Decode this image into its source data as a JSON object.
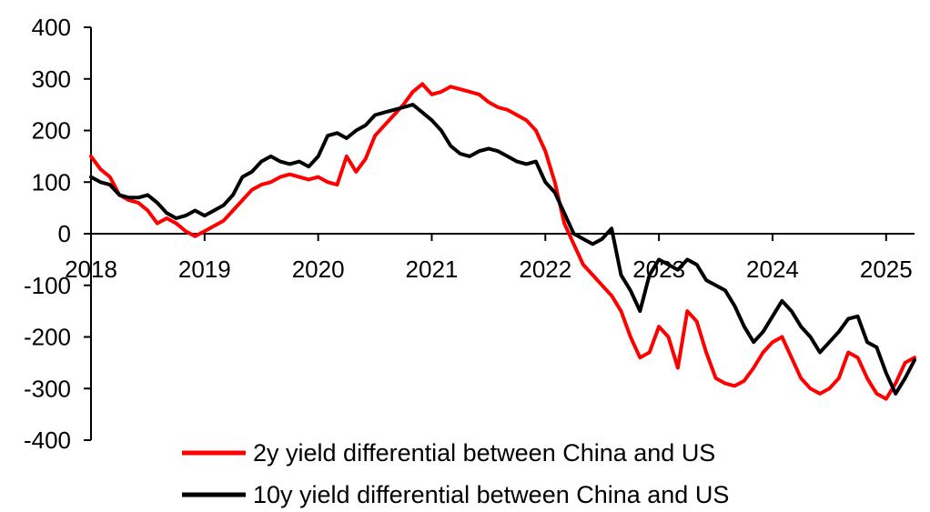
{
  "chart_data": {
    "type": "line",
    "title": "",
    "xlabel": "",
    "ylabel": "",
    "ylim": [
      -400,
      400
    ],
    "xlim": [
      "2018-01",
      "2025-04"
    ],
    "yticks": [
      "400",
      "300",
      "200",
      "100",
      "0",
      "-100",
      "-200",
      "-300",
      "-400"
    ],
    "xticks": [
      "2018",
      "2019",
      "2020",
      "2021",
      "2022",
      "2023",
      "2024",
      "2025"
    ],
    "grid": false,
    "legend": "bottom",
    "series": [
      {
        "name": "2y yield differential between China and US",
        "color": "#ff0000",
        "points": [
          [
            "2018-01",
            150
          ],
          [
            "2018-02",
            125
          ],
          [
            "2018-03",
            110
          ],
          [
            "2018-04",
            75
          ],
          [
            "2018-05",
            65
          ],
          [
            "2018-06",
            60
          ],
          [
            "2018-07",
            45
          ],
          [
            "2018-08",
            20
          ],
          [
            "2018-09",
            30
          ],
          [
            "2018-10",
            20
          ],
          [
            "2018-11",
            5
          ],
          [
            "2018-12",
            -5
          ],
          [
            "2019-01",
            5
          ],
          [
            "2019-02",
            15
          ],
          [
            "2019-03",
            25
          ],
          [
            "2019-04",
            45
          ],
          [
            "2019-05",
            65
          ],
          [
            "2019-06",
            85
          ],
          [
            "2019-07",
            95
          ],
          [
            "2019-08",
            100
          ],
          [
            "2019-09",
            110
          ],
          [
            "2019-10",
            115
          ],
          [
            "2019-11",
            110
          ],
          [
            "2019-12",
            105
          ],
          [
            "2020-01",
            110
          ],
          [
            "2020-02",
            100
          ],
          [
            "2020-03",
            95
          ],
          [
            "2020-04",
            150
          ],
          [
            "2020-05",
            120
          ],
          [
            "2020-06",
            145
          ],
          [
            "2020-07",
            190
          ],
          [
            "2020-08",
            210
          ],
          [
            "2020-09",
            230
          ],
          [
            "2020-10",
            250
          ],
          [
            "2020-11",
            275
          ],
          [
            "2020-12",
            290
          ],
          [
            "2021-01",
            270
          ],
          [
            "2021-02",
            275
          ],
          [
            "2021-03",
            285
          ],
          [
            "2021-04",
            280
          ],
          [
            "2021-05",
            275
          ],
          [
            "2021-06",
            270
          ],
          [
            "2021-07",
            255
          ],
          [
            "2021-08",
            245
          ],
          [
            "2021-09",
            240
          ],
          [
            "2021-10",
            230
          ],
          [
            "2021-11",
            220
          ],
          [
            "2021-12",
            200
          ],
          [
            "2022-01",
            160
          ],
          [
            "2022-02",
            100
          ],
          [
            "2022-03",
            20
          ],
          [
            "2022-04",
            -20
          ],
          [
            "2022-05",
            -60
          ],
          [
            "2022-06",
            -80
          ],
          [
            "2022-07",
            -100
          ],
          [
            "2022-08",
            -120
          ],
          [
            "2022-09",
            -150
          ],
          [
            "2022-10",
            -200
          ],
          [
            "2022-11",
            -240
          ],
          [
            "2022-12",
            -230
          ],
          [
            "2023-01",
            -180
          ],
          [
            "2023-02",
            -200
          ],
          [
            "2023-03",
            -260
          ],
          [
            "2023-04",
            -150
          ],
          [
            "2023-05",
            -170
          ],
          [
            "2023-06",
            -230
          ],
          [
            "2023-07",
            -280
          ],
          [
            "2023-08",
            -290
          ],
          [
            "2023-09",
            -295
          ],
          [
            "2023-10",
            -285
          ],
          [
            "2023-11",
            -260
          ],
          [
            "2023-12",
            -230
          ],
          [
            "2024-01",
            -210
          ],
          [
            "2024-02",
            -200
          ],
          [
            "2024-03",
            -240
          ],
          [
            "2024-04",
            -280
          ],
          [
            "2024-05",
            -300
          ],
          [
            "2024-06",
            -310
          ],
          [
            "2024-07",
            -300
          ],
          [
            "2024-08",
            -280
          ],
          [
            "2024-09",
            -230
          ],
          [
            "2024-10",
            -240
          ],
          [
            "2024-11",
            -280
          ],
          [
            "2024-12",
            -310
          ],
          [
            "2025-01",
            -320
          ],
          [
            "2025-02",
            -290
          ],
          [
            "2025-03",
            -250
          ],
          [
            "2025-04",
            -240
          ]
        ]
      },
      {
        "name": "10y yield differential between China and US",
        "color": "#000000",
        "points": [
          [
            "2018-01",
            110
          ],
          [
            "2018-02",
            100
          ],
          [
            "2018-03",
            95
          ],
          [
            "2018-04",
            75
          ],
          [
            "2018-05",
            70
          ],
          [
            "2018-06",
            70
          ],
          [
            "2018-07",
            75
          ],
          [
            "2018-08",
            60
          ],
          [
            "2018-09",
            40
          ],
          [
            "2018-10",
            30
          ],
          [
            "2018-11",
            35
          ],
          [
            "2018-12",
            45
          ],
          [
            "2019-01",
            35
          ],
          [
            "2019-02",
            45
          ],
          [
            "2019-03",
            55
          ],
          [
            "2019-04",
            75
          ],
          [
            "2019-05",
            110
          ],
          [
            "2019-06",
            120
          ],
          [
            "2019-07",
            140
          ],
          [
            "2019-08",
            150
          ],
          [
            "2019-09",
            140
          ],
          [
            "2019-10",
            135
          ],
          [
            "2019-11",
            140
          ],
          [
            "2019-12",
            130
          ],
          [
            "2020-01",
            150
          ],
          [
            "2020-02",
            190
          ],
          [
            "2020-03",
            195
          ],
          [
            "2020-04",
            185
          ],
          [
            "2020-05",
            200
          ],
          [
            "2020-06",
            210
          ],
          [
            "2020-07",
            230
          ],
          [
            "2020-08",
            235
          ],
          [
            "2020-09",
            240
          ],
          [
            "2020-10",
            245
          ],
          [
            "2020-11",
            250
          ],
          [
            "2020-12",
            235
          ],
          [
            "2021-01",
            220
          ],
          [
            "2021-02",
            200
          ],
          [
            "2021-03",
            170
          ],
          [
            "2021-04",
            155
          ],
          [
            "2021-05",
            150
          ],
          [
            "2021-06",
            160
          ],
          [
            "2021-07",
            165
          ],
          [
            "2021-08",
            160
          ],
          [
            "2021-09",
            150
          ],
          [
            "2021-10",
            140
          ],
          [
            "2021-11",
            135
          ],
          [
            "2021-12",
            140
          ],
          [
            "2022-01",
            100
          ],
          [
            "2022-02",
            80
          ],
          [
            "2022-03",
            40
          ],
          [
            "2022-04",
            0
          ],
          [
            "2022-05",
            -10
          ],
          [
            "2022-06",
            -20
          ],
          [
            "2022-07",
            -10
          ],
          [
            "2022-08",
            10
          ],
          [
            "2022-09",
            -80
          ],
          [
            "2022-10",
            -110
          ],
          [
            "2022-11",
            -150
          ],
          [
            "2022-12",
            -80
          ],
          [
            "2023-01",
            -50
          ],
          [
            "2023-02",
            -60
          ],
          [
            "2023-03",
            -70
          ],
          [
            "2023-04",
            -50
          ],
          [
            "2023-05",
            -60
          ],
          [
            "2023-06",
            -90
          ],
          [
            "2023-07",
            -100
          ],
          [
            "2023-08",
            -110
          ],
          [
            "2023-09",
            -140
          ],
          [
            "2023-10",
            -180
          ],
          [
            "2023-11",
            -210
          ],
          [
            "2023-12",
            -190
          ],
          [
            "2024-01",
            -160
          ],
          [
            "2024-02",
            -130
          ],
          [
            "2024-03",
            -150
          ],
          [
            "2024-04",
            -180
          ],
          [
            "2024-05",
            -200
          ],
          [
            "2024-06",
            -230
          ],
          [
            "2024-07",
            -210
          ],
          [
            "2024-08",
            -190
          ],
          [
            "2024-09",
            -165
          ],
          [
            "2024-10",
            -160
          ],
          [
            "2024-11",
            -210
          ],
          [
            "2024-12",
            -220
          ],
          [
            "2025-01",
            -270
          ],
          [
            "2025-02",
            -310
          ],
          [
            "2025-03",
            -280
          ],
          [
            "2025-04",
            -245
          ]
        ]
      }
    ]
  }
}
